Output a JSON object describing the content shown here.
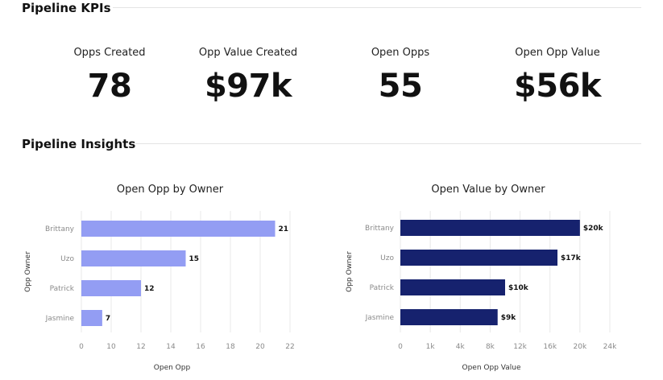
{
  "sections": {
    "kpis_title": "Pipeline KPIs",
    "insights_title": "Pipeline Insights"
  },
  "kpis": [
    {
      "label": "Opps Created",
      "value": "78"
    },
    {
      "label": "Opp Value Created",
      "value": "$97k"
    },
    {
      "label": "Open Opps",
      "value": "55"
    },
    {
      "label": "Open Opp Value",
      "value": "$56k"
    }
  ],
  "colors": {
    "chart1_bar": "#939df3",
    "chart2_bar": "#16226e"
  },
  "chart_data": [
    {
      "type": "bar",
      "orientation": "horizontal",
      "title": "Open Opp by Owner",
      "xlabel": "Open Opp",
      "ylabel": "Opp Owner",
      "categories": [
        "Brittany",
        "Uzo",
        "Patrick",
        "Jasmine"
      ],
      "values": [
        21,
        15,
        12,
        7
      ],
      "data_labels": [
        "21",
        "15",
        "12",
        "7"
      ],
      "x_ticks": [
        0,
        10,
        12,
        14,
        16,
        18,
        20,
        22
      ],
      "x_tick_labels": [
        "0",
        "10",
        "12",
        "14",
        "16",
        "18",
        "20",
        "22"
      ],
      "xlim": [
        0,
        22
      ],
      "grid": true
    },
    {
      "type": "bar",
      "orientation": "horizontal",
      "title": "Open Value by Owner",
      "xlabel": "Open Opp Value",
      "ylabel": "Opp Owner",
      "categories": [
        "Brittany",
        "Uzo",
        "Patrick",
        "Jasmine"
      ],
      "values": [
        20000,
        17000,
        10000,
        9000
      ],
      "data_labels": [
        "$20k",
        "$17k",
        "$10k",
        "$9k"
      ],
      "x_ticks": [
        0,
        1000,
        4000,
        8000,
        12000,
        16000,
        20000,
        24000
      ],
      "x_tick_labels": [
        "0",
        "1k",
        "4k",
        "8k",
        "12k",
        "16k",
        "20k",
        "24k"
      ],
      "xlim": [
        0,
        24000
      ],
      "grid": true
    }
  ]
}
